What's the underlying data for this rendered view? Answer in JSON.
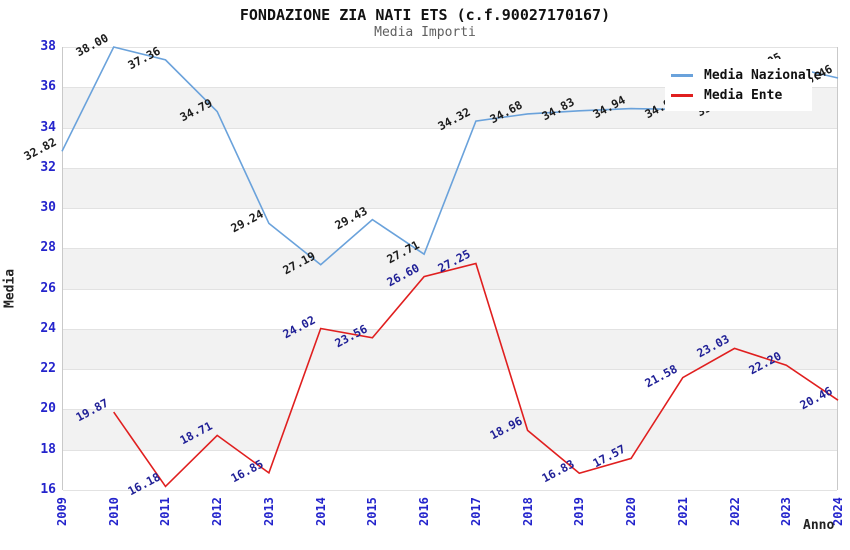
{
  "chart_data": {
    "type": "line",
    "title": "FONDAZIONE ZIA NATI ETS (c.f.90027170167)",
    "subtitle": "Media Importi",
    "xlabel": "Anno",
    "ylabel": "Media",
    "ylim": [
      16,
      38
    ],
    "ytick_step": 2,
    "grid": "horizontal, alternating shaded bands every 2 units",
    "legend_position": "top-right, overlapping plot",
    "categories": [
      "2009",
      "2010",
      "2011",
      "2012",
      "2013",
      "2014",
      "2015",
      "2016",
      "2017",
      "2018",
      "2019",
      "2020",
      "2021",
      "2022",
      "2023",
      "2024"
    ],
    "series": [
      {
        "name": "Media Nazionale",
        "color": "#6aa2db",
        "label_color": "#1c1c1c",
        "values": [
          32.82,
          38.0,
          37.36,
          34.79,
          29.24,
          27.19,
          29.43,
          27.71,
          34.32,
          34.68,
          34.83,
          34.94,
          34.9,
          35.0,
          37.05,
          36.46
        ],
        "labels": [
          "32.82",
          "38.00",
          "37.36",
          "34.79",
          "29.24",
          "27.19",
          "29.43",
          "27.71",
          "34.32",
          "34.68",
          "34.83",
          "34.94",
          "34.90",
          "35.00",
          "37.05",
          "36.46"
        ]
      },
      {
        "name": "Media Ente",
        "color": "#e01f1f",
        "label_color": "#1f1f96",
        "values": [
          null,
          19.87,
          16.18,
          18.71,
          16.85,
          24.02,
          23.56,
          26.6,
          27.25,
          18.96,
          16.83,
          17.57,
          21.58,
          23.03,
          22.2,
          20.46
        ],
        "labels": [
          "",
          "19.87",
          "16.18",
          "18.71",
          "16.85",
          "24.02",
          "23.56",
          "26.60",
          "27.25",
          "18.96",
          "16.83",
          "17.57",
          "21.58",
          "23.03",
          "22.20",
          "20.46"
        ]
      }
    ],
    "colors": {
      "axis_tick_label": "#2424cc",
      "band_shaded": "#f2f2f2",
      "gridline": "#e2e2e2",
      "plot_border": "#c9c9c9",
      "subtitle": "#5f5f5f"
    }
  }
}
